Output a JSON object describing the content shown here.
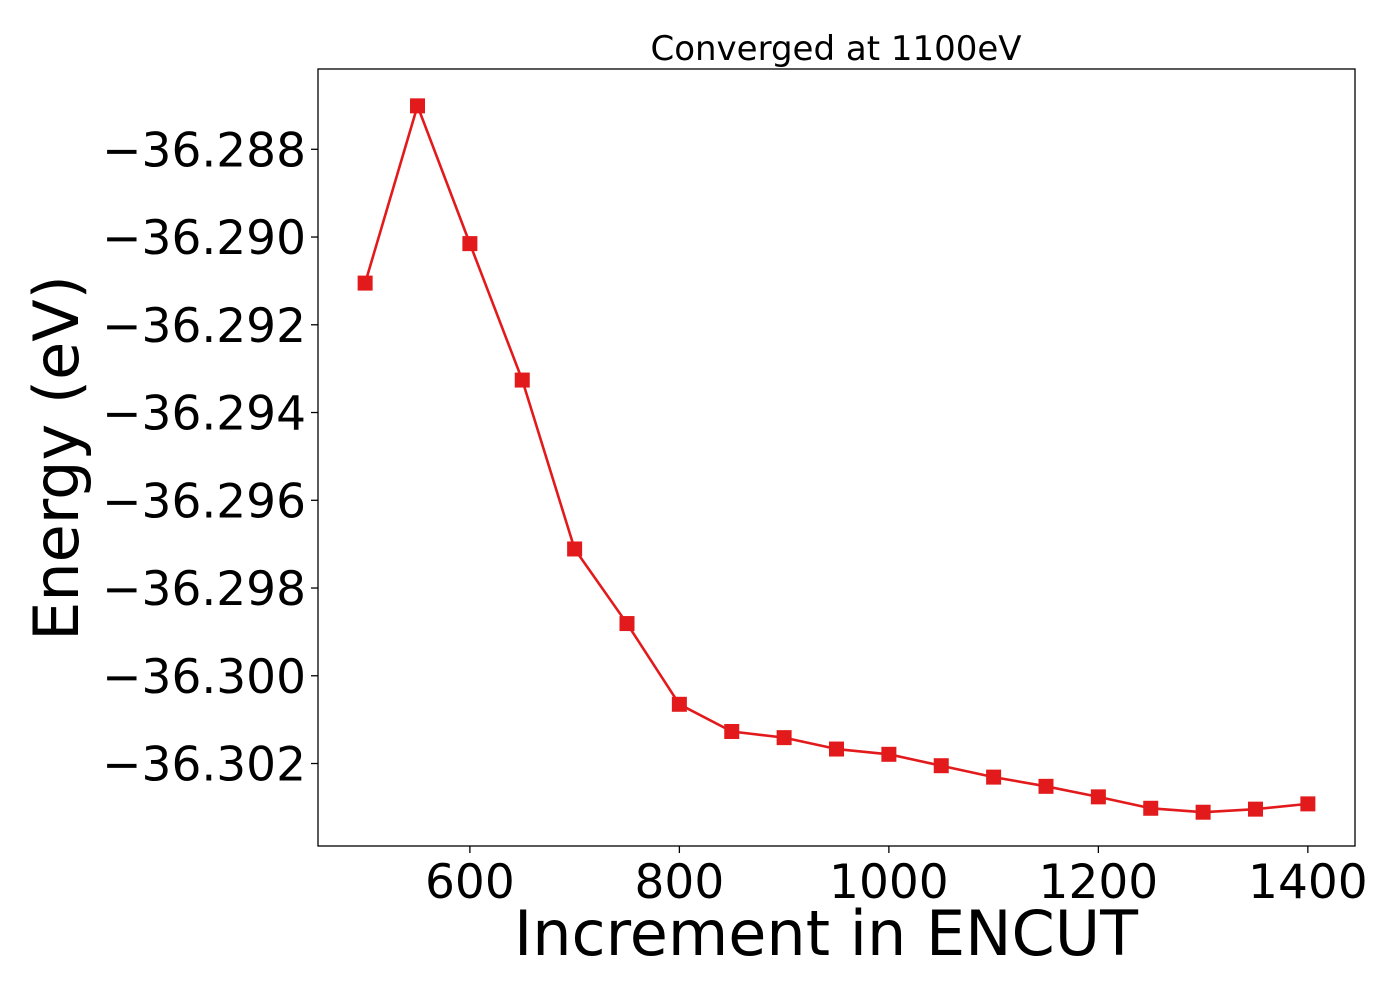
{
  "chart_data": {
    "type": "line",
    "title": "Converged at 1100eV",
    "xlabel": "Increment in ENCUT",
    "ylabel": "Energy (eV)",
    "xlim": [
      455,
      1445
    ],
    "ylim": [
      -36.30388,
      -36.28617
    ],
    "x_ticks": [
      600,
      800,
      1000,
      1200,
      1400
    ],
    "x_tick_labels": [
      "600",
      "800",
      "1000",
      "1200",
      "1400"
    ],
    "y_ticks": [
      -36.288,
      -36.29,
      -36.292,
      -36.294,
      -36.296,
      -36.298,
      -36.3,
      -36.302
    ],
    "y_tick_labels": [
      "−36.288",
      "−36.290",
      "−36.292",
      "−36.294",
      "−36.296",
      "−36.298",
      "−36.300",
      "−36.302"
    ],
    "grid": false,
    "series": [
      {
        "color": "#e31a1c",
        "marker": "square",
        "x": [
          500,
          550,
          600,
          650,
          700,
          750,
          800,
          850,
          900,
          950,
          1000,
          1050,
          1100,
          1150,
          1200,
          1250,
          1300,
          1350,
          1400
        ],
        "y": [
          -36.29105,
          -36.28701,
          -36.29015,
          -36.29326,
          -36.29711,
          -36.29881,
          -36.30065,
          -36.30127,
          -36.30141,
          -36.30167,
          -36.30179,
          -36.30205,
          -36.30231,
          -36.30252,
          -36.30276,
          -36.30302,
          -36.30311,
          -36.30304,
          -36.30292
        ]
      }
    ]
  }
}
